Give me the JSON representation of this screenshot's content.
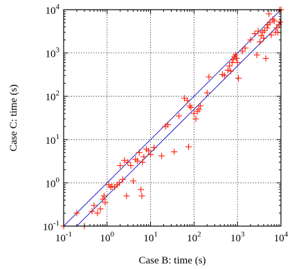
{
  "chart_data": {
    "type": "scatter",
    "xlabel": "Case B: time (s)",
    "ylabel": "Case C: time (s)",
    "xscale": "log",
    "yscale": "log",
    "xlim": [
      0.1,
      10000
    ],
    "ylim": [
      0.1,
      10000
    ],
    "grid": true,
    "ticks": [
      {
        "base": "10",
        "exp": "-1"
      },
      {
        "base": "10",
        "exp": "0"
      },
      {
        "base": "10",
        "exp": "1"
      },
      {
        "base": "10",
        "exp": "2"
      },
      {
        "base": "10",
        "exp": "3"
      },
      {
        "base": "10",
        "exp": "4"
      }
    ],
    "reference_lines": [
      {
        "relation": "y = x",
        "color": "#2222cc"
      },
      {
        "relation": "y = x / 2",
        "color": "#2222cc"
      }
    ],
    "marker": {
      "shape": "plus",
      "color": "#ff1a00"
    },
    "points": [
      [
        0.1,
        0.1
      ],
      [
        0.2,
        0.2
      ],
      [
        0.3,
        0.1
      ],
      [
        0.45,
        0.22
      ],
      [
        0.5,
        0.3
      ],
      [
        0.6,
        0.2
      ],
      [
        0.7,
        0.25
      ],
      [
        0.8,
        0.42
      ],
      [
        0.85,
        0.5
      ],
      [
        0.9,
        0.35
      ],
      [
        1.1,
        0.9
      ],
      [
        1.2,
        0.8
      ],
      [
        1.3,
        0.82
      ],
      [
        1.5,
        0.8
      ],
      [
        1.7,
        0.9
      ],
      [
        1.9,
        1.0
      ],
      [
        2.0,
        2.5
      ],
      [
        2.3,
        1.2
      ],
      [
        2.5,
        3.3
      ],
      [
        2.8,
        0.5
      ],
      [
        3.0,
        3.0
      ],
      [
        3.5,
        2.5
      ],
      [
        4.0,
        1.1
      ],
      [
        4.5,
        3.5
      ],
      [
        5.0,
        3.2
      ],
      [
        5.5,
        5.0
      ],
      [
        6.0,
        0.7
      ],
      [
        6.3,
        0.5
      ],
      [
        6.5,
        3.0
      ],
      [
        7.0,
        4.0
      ],
      [
        8.0,
        6.0
      ],
      [
        9.0,
        5.5
      ],
      [
        10,
        4.5
      ],
      [
        12,
        6.5
      ],
      [
        18,
        4.2
      ],
      [
        22,
        20
      ],
      [
        25,
        22
      ],
      [
        35,
        5.2
      ],
      [
        45,
        35
      ],
      [
        60,
        90
      ],
      [
        70,
        80
      ],
      [
        75,
        6.8
      ],
      [
        80,
        60
      ],
      [
        85,
        55
      ],
      [
        100,
        40
      ],
      [
        110,
        30
      ],
      [
        120,
        45
      ],
      [
        130,
        50
      ],
      [
        140,
        60
      ],
      [
        200,
        120
      ],
      [
        220,
        280
      ],
      [
        450,
        320
      ],
      [
        500,
        300
      ],
      [
        600,
        400
      ],
      [
        650,
        500
      ],
      [
        700,
        380
      ],
      [
        750,
        600
      ],
      [
        800,
        700
      ],
      [
        850,
        820
      ],
      [
        900,
        900
      ],
      [
        950,
        750
      ],
      [
        1000,
        600
      ],
      [
        1050,
        260
      ],
      [
        1300,
        1100
      ],
      [
        1500,
        1300
      ],
      [
        2000,
        2000
      ],
      [
        2500,
        2800
      ],
      [
        2800,
        900
      ],
      [
        3000,
        3200
      ],
      [
        3300,
        1800
      ],
      [
        3500,
        2500
      ],
      [
        3800,
        3000
      ],
      [
        4000,
        2200
      ],
      [
        4200,
        3300
      ],
      [
        4500,
        750
      ],
      [
        4800,
        3800
      ],
      [
        5000,
        4500
      ],
      [
        5300,
        8000
      ],
      [
        5600,
        5000
      ],
      [
        6000,
        2600
      ],
      [
        6500,
        6000
      ],
      [
        7000,
        5500
      ],
      [
        7500,
        3000
      ],
      [
        8000,
        3800
      ],
      [
        8500,
        3000
      ],
      [
        9000,
        4500
      ],
      [
        9300,
        9800
      ],
      [
        9600,
        5200
      ],
      [
        10000,
        10000
      ]
    ]
  }
}
